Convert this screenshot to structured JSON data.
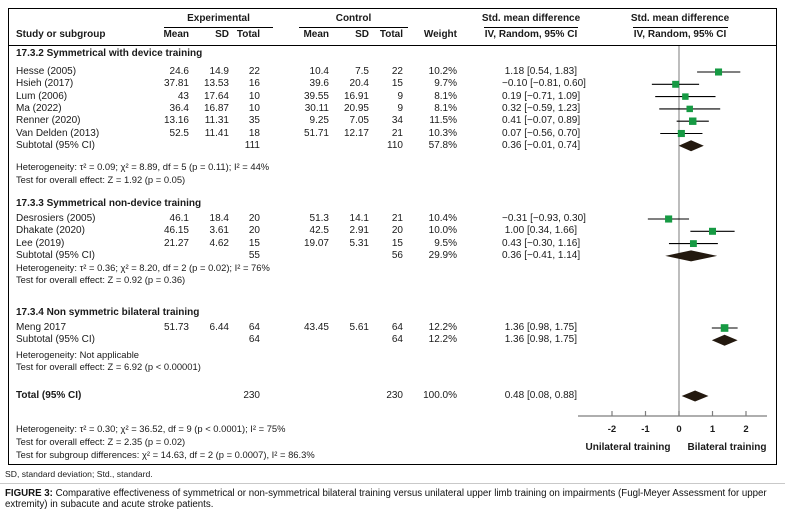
{
  "header": {
    "study_col": "Study or subgroup",
    "experimental_label": "Experimental",
    "control_label": "Control",
    "mean": "Mean",
    "sd": "SD",
    "total": "Total",
    "weight": "Weight",
    "smd_label": "Std. mean difference",
    "method_label": "IV, Random, 95% CI"
  },
  "sections": [
    {
      "title": "17.3.2 Symmetrical with device training",
      "studies": [
        {
          "name": "Hesse (2005)",
          "mean1": "24.6",
          "sd1": "14.9",
          "n1": "22",
          "mean2": "10.4",
          "sd2": "7.5",
          "n2": "22",
          "weight": "10.2%",
          "ci_text": "1.18 [0.54, 1.83]",
          "est": 1.18,
          "lo": 0.54,
          "hi": 1.83
        },
        {
          "name": "Hsieh (2017)",
          "mean1": "37.81",
          "sd1": "13.53",
          "n1": "16",
          "mean2": "39.6",
          "sd2": "20.4",
          "n2": "15",
          "weight": "9.7%",
          "ci_text": "−0.10 [−0.81, 0.60]",
          "est": -0.1,
          "lo": -0.81,
          "hi": 0.6
        },
        {
          "name": "Lum (2006)",
          "mean1": "43",
          "sd1": "17.64",
          "n1": "10",
          "mean2": "39.55",
          "sd2": "16.91",
          "n2": "9",
          "weight": "8.1%",
          "ci_text": "0.19 [−0.71, 1.09]",
          "est": 0.19,
          "lo": -0.71,
          "hi": 1.09
        },
        {
          "name": "Ma (2022)",
          "mean1": "36.4",
          "sd1": "16.87",
          "n1": "10",
          "mean2": "30.11",
          "sd2": "20.95",
          "n2": "9",
          "weight": "8.1%",
          "ci_text": "0.32 [−0.59, 1.23]",
          "est": 0.32,
          "lo": -0.59,
          "hi": 1.23
        },
        {
          "name": "Renner (2020)",
          "mean1": "13.16",
          "sd1": "11.31",
          "n1": "35",
          "mean2": "9.25",
          "sd2": "7.05",
          "n2": "34",
          "weight": "11.5%",
          "ci_text": "0.41 [−0.07, 0.89]",
          "est": 0.41,
          "lo": -0.07,
          "hi": 0.89
        },
        {
          "name": "Van Delden (2013)",
          "mean1": "52.5",
          "sd1": "11.41",
          "n1": "18",
          "mean2": "51.71",
          "sd2": "12.17",
          "n2": "21",
          "weight": "10.3%",
          "ci_text": "0.07 [−0.56, 0.70]",
          "est": 0.07,
          "lo": -0.56,
          "hi": 0.7
        }
      ],
      "subtotal": {
        "label": "Subtotal (95% CI)",
        "n1": "111",
        "n2": "110",
        "weight": "57.8%",
        "ci_text": "0.36 [−0.01, 0.74]",
        "est": 0.36,
        "lo": -0.01,
        "hi": 0.74
      },
      "heterogeneity": "Heterogeneity: τ² = 0.09; χ² = 8.89, df = 5 (p = 0.11); I² = 44%",
      "overall_test": "Test for overall effect: Z = 1.92 (p = 0.05)"
    },
    {
      "title": "17.3.3 Symmetrical non-device training",
      "studies": [
        {
          "name": "Desrosiers (2005)",
          "mean1": "46.1",
          "sd1": "18.4",
          "n1": "20",
          "mean2": "51.3",
          "sd2": "14.1",
          "n2": "21",
          "weight": "10.4%",
          "ci_text": "−0.31 [−0.93, 0.30]",
          "est": -0.31,
          "lo": -0.93,
          "hi": 0.3
        },
        {
          "name": "Dhakate (2020)",
          "mean1": "46.15",
          "sd1": "3.61",
          "n1": "20",
          "mean2": "42.5",
          "sd2": "2.91",
          "n2": "20",
          "weight": "10.0%",
          "ci_text": "1.00 [0.34, 1.66]",
          "est": 1.0,
          "lo": 0.34,
          "hi": 1.66
        },
        {
          "name": "Lee (2019)",
          "mean1": "21.27",
          "sd1": "4.62",
          "n1": "15",
          "mean2": "19.07",
          "sd2": "5.31",
          "n2": "15",
          "weight": "9.5%",
          "ci_text": "0.43 [−0.30, 1.16]",
          "est": 0.43,
          "lo": -0.3,
          "hi": 1.16
        }
      ],
      "subtotal": {
        "label": "Subtotal (95% CI)",
        "n1": "55",
        "n2": "56",
        "weight": "29.9%",
        "ci_text": "0.36 [−0.41, 1.14]",
        "est": 0.36,
        "lo": -0.41,
        "hi": 1.14
      },
      "heterogeneity": "Heterogeneity: τ² = 0.36; χ² = 8.20, df = 2 (p = 0.02); I² = 76%",
      "overall_test": "Test for overall effect: Z = 0.92 (p = 0.36)"
    },
    {
      "title": "17.3.4 Non symmetric bilateral training",
      "studies": [
        {
          "name": "Meng 2017",
          "mean1": "51.73",
          "sd1": "6.44",
          "n1": "64",
          "mean2": "43.45",
          "sd2": "5.61",
          "n2": "64",
          "weight": "12.2%",
          "ci_text": "1.36 [0.98, 1.75]",
          "est": 1.36,
          "lo": 0.98,
          "hi": 1.75
        }
      ],
      "subtotal": {
        "label": "Subtotal (95% CI)",
        "n1": "64",
        "n2": "64",
        "weight": "12.2%",
        "ci_text": "1.36 [0.98, 1.75]",
        "est": 1.36,
        "lo": 0.98,
        "hi": 1.75
      },
      "heterogeneity": "Heterogeneity: Not applicable",
      "overall_test": "Test for overall effect: Z = 6.92 (p < 0.00001)"
    }
  ],
  "total_row": {
    "label": "Total (95% CI)",
    "n1": "230",
    "n2": "230",
    "weight": "100.0%",
    "ci_text": "0.48 [0.08, 0.88]",
    "est": 0.48,
    "lo": 0.08,
    "hi": 0.88
  },
  "footer_stats": [
    "Heterogeneity: τ² = 0.30; χ² = 36.52, df = 9 (p < 0.0001); I² = 75%",
    "Test for overall effect: Z = 2.35 (p = 0.02)",
    "Test for subgroup differences: χ² = 14.63, df = 2 (p = 0.0007), I² = 86.3%"
  ],
  "axis": {
    "ticks": [
      -2,
      -1,
      0,
      1,
      2
    ],
    "left_label": "Unilateral training",
    "right_label": "Bilateral training"
  },
  "caption": {
    "abbrev": "SD, standard deviation; Std., standard.",
    "figure_label": "FIGURE 3:",
    "figure_text": " Comparative effectiveness of symmetrical or non-symmetrical bilateral training versus unilateral upper limb training on impairments (Fugl-Meyer Assessment for upper extremity) in subacute and acute stroke patients."
  },
  "colors": {
    "square": "#169a43",
    "diamond": "#23190f",
    "ci_line": "#000000",
    "zero_line": "#9a9a9a",
    "axis": "#7d7d7d",
    "text": "#1a1a1a"
  },
  "chart_data": {
    "type": "scatter",
    "chart_kind": "forest-plot",
    "title": "Std. mean difference, IV, Random, 95% CI",
    "x_ticks": [
      -2,
      -1,
      0,
      1,
      2
    ],
    "xlim": [
      -3,
      2.8
    ],
    "x_label_left": "Unilateral training",
    "x_label_right": "Bilateral training",
    "groups": [
      {
        "name": "17.3.2 Symmetrical with device training",
        "points": [
          {
            "label": "Hesse (2005)",
            "est": 1.18,
            "ci": [
              0.54,
              1.83
            ],
            "weight_pct": 10.2
          },
          {
            "label": "Hsieh (2017)",
            "est": -0.1,
            "ci": [
              -0.81,
              0.6
            ],
            "weight_pct": 9.7
          },
          {
            "label": "Lum (2006)",
            "est": 0.19,
            "ci": [
              -0.71,
              1.09
            ],
            "weight_pct": 8.1
          },
          {
            "label": "Ma (2022)",
            "est": 0.32,
            "ci": [
              -0.59,
              1.23
            ],
            "weight_pct": 8.1
          },
          {
            "label": "Renner (2020)",
            "est": 0.41,
            "ci": [
              -0.07,
              0.89
            ],
            "weight_pct": 11.5
          },
          {
            "label": "Van Delden (2013)",
            "est": 0.07,
            "ci": [
              -0.56,
              0.7
            ],
            "weight_pct": 10.3
          }
        ],
        "subtotal": {
          "est": 0.36,
          "ci": [
            -0.01,
            0.74
          ],
          "weight_pct": 57.8
        }
      },
      {
        "name": "17.3.3 Symmetrical non-device training",
        "points": [
          {
            "label": "Desrosiers (2005)",
            "est": -0.31,
            "ci": [
              -0.93,
              0.3
            ],
            "weight_pct": 10.4
          },
          {
            "label": "Dhakate (2020)",
            "est": 1.0,
            "ci": [
              0.34,
              1.66
            ],
            "weight_pct": 10.0
          },
          {
            "label": "Lee (2019)",
            "est": 0.43,
            "ci": [
              -0.3,
              1.16
            ],
            "weight_pct": 9.5
          }
        ],
        "subtotal": {
          "est": 0.36,
          "ci": [
            -0.41,
            1.14
          ],
          "weight_pct": 29.9
        }
      },
      {
        "name": "17.3.4 Non symmetric bilateral training",
        "points": [
          {
            "label": "Meng 2017",
            "est": 1.36,
            "ci": [
              0.98,
              1.75
            ],
            "weight_pct": 12.2
          }
        ],
        "subtotal": {
          "est": 1.36,
          "ci": [
            0.98,
            1.75
          ],
          "weight_pct": 12.2
        }
      }
    ],
    "total": {
      "est": 0.48,
      "ci": [
        0.08,
        0.88
      ],
      "weight_pct": 100.0
    }
  }
}
